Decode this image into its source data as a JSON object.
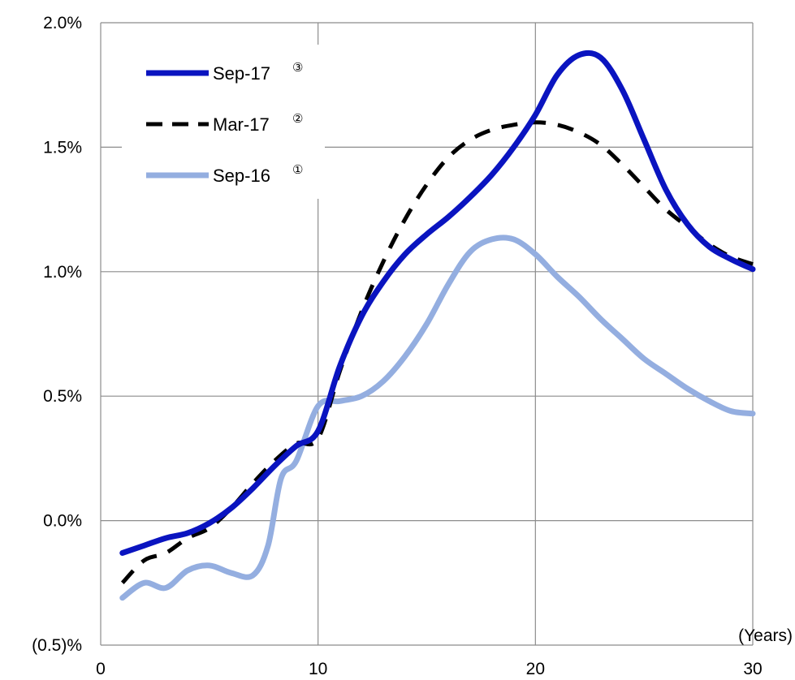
{
  "chart_data": {
    "type": "line",
    "title": "",
    "xlabel": "(Years)",
    "ylabel": "",
    "xlim": [
      0,
      30
    ],
    "ylim": [
      -0.5,
      2.0
    ],
    "x_ticks": [
      0,
      10,
      20,
      30
    ],
    "y_ticks": [
      -0.5,
      0.0,
      0.5,
      1.0,
      1.5,
      2.0
    ],
    "x_tick_labels": [
      "0",
      "10",
      "20",
      "30"
    ],
    "y_tick_labels": [
      "(0.5)%",
      "0.0%",
      "0.5%",
      "1.0%",
      "1.5%",
      "2.0%"
    ],
    "grid": true,
    "legend_position": "top-left",
    "series": [
      {
        "name": "Sep-17",
        "marker": "③",
        "color": "#0a14c0",
        "style": "solid",
        "x": [
          1,
          2,
          3,
          4,
          5,
          6,
          7,
          8,
          9,
          10,
          11,
          12,
          13,
          14,
          15,
          16,
          17,
          18,
          19,
          20,
          21,
          22,
          23,
          24,
          25,
          26,
          27,
          28,
          29,
          30
        ],
        "y": [
          -0.13,
          -0.1,
          -0.07,
          -0.05,
          -0.01,
          0.05,
          0.13,
          0.22,
          0.3,
          0.36,
          0.62,
          0.82,
          0.96,
          1.07,
          1.15,
          1.22,
          1.3,
          1.39,
          1.5,
          1.63,
          1.79,
          1.87,
          1.86,
          1.73,
          1.53,
          1.33,
          1.19,
          1.1,
          1.05,
          1.01
        ]
      },
      {
        "name": "Mar-17",
        "marker": "②",
        "color": "#000000",
        "style": "dashed",
        "x": [
          1,
          2,
          3,
          4,
          5,
          6,
          7,
          8,
          9,
          10,
          11,
          12,
          13,
          14,
          15,
          16,
          17,
          18,
          19,
          20,
          21,
          22,
          23,
          24,
          25,
          26,
          27,
          28,
          29,
          30
        ],
        "y": [
          -0.25,
          -0.16,
          -0.13,
          -0.07,
          -0.03,
          0.05,
          0.15,
          0.24,
          0.31,
          0.33,
          0.6,
          0.84,
          1.04,
          1.21,
          1.35,
          1.46,
          1.53,
          1.57,
          1.59,
          1.6,
          1.59,
          1.56,
          1.51,
          1.43,
          1.34,
          1.25,
          1.18,
          1.11,
          1.06,
          1.03
        ]
      },
      {
        "name": "Sep-16",
        "marker": "①",
        "color": "#94aee0",
        "style": "solid",
        "x": [
          1,
          2,
          3,
          4,
          5,
          6,
          7,
          7.7,
          8.3,
          9,
          10,
          11,
          12,
          13,
          14,
          15,
          16,
          17,
          18,
          19,
          20,
          21,
          22,
          23,
          24,
          25,
          26,
          27,
          28,
          29,
          30
        ],
        "y": [
          -0.31,
          -0.25,
          -0.27,
          -0.2,
          -0.18,
          -0.21,
          -0.22,
          -0.1,
          0.17,
          0.24,
          0.46,
          0.48,
          0.5,
          0.56,
          0.66,
          0.79,
          0.95,
          1.08,
          1.13,
          1.13,
          1.07,
          0.98,
          0.9,
          0.81,
          0.73,
          0.65,
          0.59,
          0.53,
          0.48,
          0.44,
          0.43
        ]
      }
    ]
  }
}
